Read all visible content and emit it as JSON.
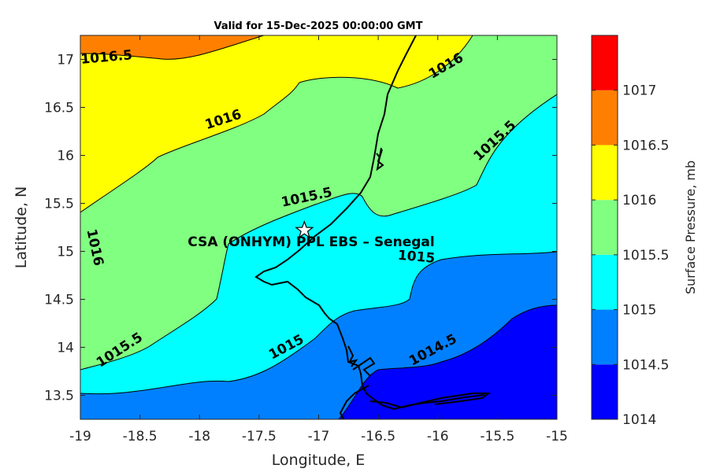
{
  "chart_data": {
    "type": "heatmap",
    "subtype": "filled-contour-map",
    "title": "Valid for 15-Dec-2025 00:00:00 GMT",
    "xlabel": "Longitude, E",
    "ylabel": "Latitude, N",
    "xlim": [
      -19,
      -15
    ],
    "ylim": [
      13.25,
      17.25
    ],
    "xticks": [
      "-19",
      "-18.5",
      "-18",
      "-17.5",
      "-17",
      "-16.5",
      "-16",
      "-15.5",
      "-15"
    ],
    "yticks": [
      "13.5",
      "14",
      "14.5",
      "15",
      "15.5",
      "16",
      "16.5",
      "17"
    ],
    "grid": false,
    "colorbar": {
      "label": "Surface Pressure, mb",
      "ticks": [
        "1014",
        "1014.5",
        "1015",
        "1015.5",
        "1016",
        "1016.5",
        "1017"
      ],
      "levels": [
        {
          "from": 1014,
          "to": 1014.5,
          "color": "#0000ff"
        },
        {
          "from": 1014.5,
          "to": 1015,
          "color": "#0080ff"
        },
        {
          "from": 1015,
          "to": 1015.5,
          "color": "#00ffff"
        },
        {
          "from": 1015.5,
          "to": 1016,
          "color": "#80ff80"
        },
        {
          "from": 1016,
          "to": 1016.5,
          "color": "#ffff00"
        },
        {
          "from": 1016.5,
          "to": 1017,
          "color": "#ff8000"
        }
      ],
      "top_color": "#ff0000"
    },
    "contour_labels": [
      {
        "text": "1016.5",
        "lon": -18.78,
        "lat": 17.02,
        "angle": -5
      },
      {
        "text": "1016",
        "lon": -15.93,
        "lat": 16.93,
        "angle": -30
      },
      {
        "text": "1016",
        "lon": -17.8,
        "lat": 16.37,
        "angle": -18
      },
      {
        "text": "1015.5",
        "lon": -15.52,
        "lat": 16.15,
        "angle": -43
      },
      {
        "text": "1015.5",
        "lon": -17.1,
        "lat": 15.56,
        "angle": -12
      },
      {
        "text": "1016",
        "lon": -18.88,
        "lat": 15.04,
        "angle": 78
      },
      {
        "text": "1015",
        "lon": -16.18,
        "lat": 14.94,
        "angle": 5
      },
      {
        "text": "1015.5",
        "lon": -18.67,
        "lat": 13.97,
        "angle": -33
      },
      {
        "text": "1015",
        "lon": -17.27,
        "lat": 14.0,
        "angle": -28
      },
      {
        "text": "1014.5",
        "lon": -16.04,
        "lat": 13.97,
        "angle": -28
      }
    ],
    "site": {
      "label": "CSA (ONHYM) PPL EBS  – Senegal",
      "lon": -17.12,
      "lat": 15.22
    }
  }
}
